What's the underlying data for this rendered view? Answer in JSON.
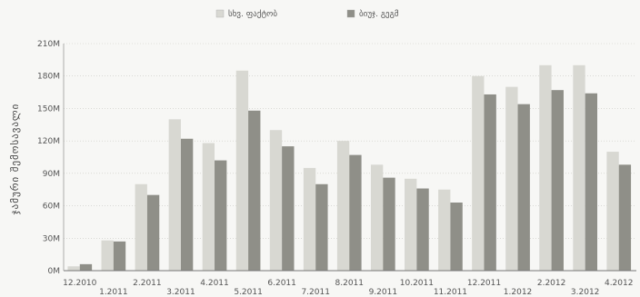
{
  "chart_data": {
    "type": "bar",
    "title": "",
    "xlabel": "",
    "ylabel": "ჯამური შემოსავალი",
    "ylim": [
      0,
      210
    ],
    "y_ticks": [
      "0M",
      "30M",
      "60M",
      "90M",
      "120M",
      "150M",
      "180M",
      "210M"
    ],
    "grid": true,
    "legend_position": "top",
    "categories": [
      "12.2010",
      "1.2011",
      "2.2011",
      "3.2011",
      "4.2011",
      "5.2011",
      "6.2011",
      "7.2011",
      "8.2011",
      "9.2011",
      "10.2011",
      "11.2011",
      "12.2011",
      "1.2012",
      "2.2012",
      "3.2012",
      "4.2012"
    ],
    "series": [
      {
        "name": "სხვ. ფაქტობ",
        "color": "#d8d8d2",
        "values": [
          4,
          28,
          80,
          140,
          118,
          185,
          130,
          95,
          120,
          98,
          85,
          75,
          180,
          170,
          190,
          190,
          110
        ]
      },
      {
        "name": "ბიუჯ. გეგმ",
        "color": "#8f8f88",
        "values": [
          6,
          27,
          70,
          122,
          102,
          148,
          115,
          80,
          107,
          86,
          76,
          63,
          163,
          154,
          167,
          164,
          98
        ]
      }
    ]
  }
}
